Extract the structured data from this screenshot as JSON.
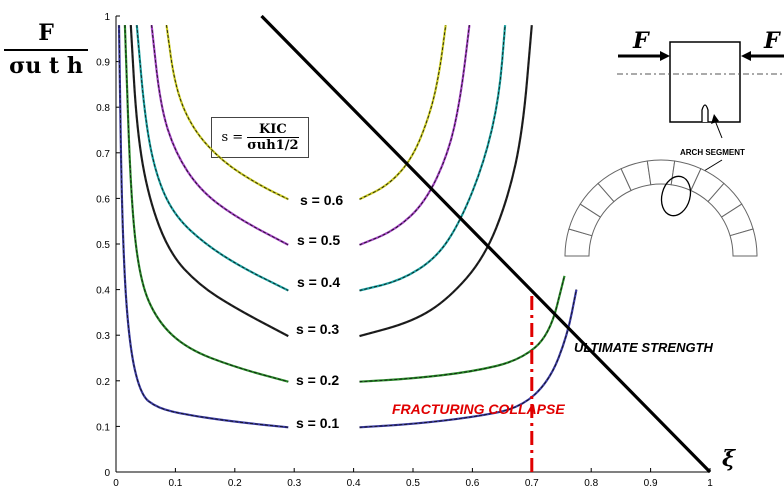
{
  "y_label": {
    "numerator": "F",
    "denominator": "σu t h"
  },
  "formula": {
    "lhs": "s =",
    "numerator": "KIC",
    "denominator": "σuh1/2"
  },
  "x_symbol": "ξ",
  "chart_data": {
    "type": "line",
    "xlim": [
      0,
      1
    ],
    "ylim": [
      0,
      1
    ],
    "xticks": [
      "0",
      "0.1",
      "0.2",
      "0.3",
      "0.4",
      "0.5",
      "0.6",
      "0.7",
      "0.8",
      "0.9",
      "1"
    ],
    "yticks": [
      "0",
      "0.1",
      "0.2",
      "0.3",
      "0.4",
      "0.5",
      "0.6",
      "0.7",
      "0.8",
      "0.9",
      "1"
    ],
    "grid": false,
    "series": [
      {
        "name": "s = 0.1",
        "color": "#3a3aa0",
        "left": [
          [
            0.005,
            0.98
          ],
          [
            0.01,
            0.55
          ],
          [
            0.02,
            0.3
          ],
          [
            0.04,
            0.17
          ],
          [
            0.07,
            0.14
          ],
          [
            0.12,
            0.125
          ],
          [
            0.2,
            0.11
          ],
          [
            0.29,
            0.098
          ]
        ],
        "right": [
          [
            0.41,
            0.098
          ],
          [
            0.5,
            0.105
          ],
          [
            0.6,
            0.12
          ],
          [
            0.68,
            0.14
          ],
          [
            0.73,
            0.2
          ],
          [
            0.76,
            0.3
          ],
          [
            0.775,
            0.4
          ]
        ]
      },
      {
        "name": "s = 0.2",
        "color": "#2a8a2a",
        "left": [
          [
            0.015,
            0.98
          ],
          [
            0.025,
            0.6
          ],
          [
            0.04,
            0.42
          ],
          [
            0.07,
            0.33
          ],
          [
            0.12,
            0.27
          ],
          [
            0.2,
            0.23
          ],
          [
            0.29,
            0.198
          ]
        ],
        "right": [
          [
            0.41,
            0.198
          ],
          [
            0.5,
            0.205
          ],
          [
            0.6,
            0.22
          ],
          [
            0.68,
            0.245
          ],
          [
            0.73,
            0.3
          ],
          [
            0.755,
            0.43
          ]
        ]
      },
      {
        "name": "s = 0.3",
        "color": "#222222",
        "left": [
          [
            0.025,
            0.98
          ],
          [
            0.035,
            0.75
          ],
          [
            0.055,
            0.6
          ],
          [
            0.09,
            0.48
          ],
          [
            0.14,
            0.41
          ],
          [
            0.2,
            0.36
          ],
          [
            0.29,
            0.298
          ]
        ],
        "right": [
          [
            0.41,
            0.298
          ],
          [
            0.5,
            0.33
          ],
          [
            0.56,
            0.38
          ],
          [
            0.62,
            0.47
          ],
          [
            0.66,
            0.6
          ],
          [
            0.685,
            0.75
          ],
          [
            0.7,
            0.98
          ]
        ]
      },
      {
        "name": "s = 0.4",
        "color": "#1aa0a0",
        "left": [
          [
            0.035,
            0.98
          ],
          [
            0.05,
            0.76
          ],
          [
            0.07,
            0.64
          ],
          [
            0.1,
            0.56
          ],
          [
            0.15,
            0.5
          ],
          [
            0.21,
            0.45
          ],
          [
            0.29,
            0.398
          ]
        ],
        "right": [
          [
            0.41,
            0.398
          ],
          [
            0.48,
            0.42
          ],
          [
            0.54,
            0.47
          ],
          [
            0.58,
            0.55
          ],
          [
            0.62,
            0.68
          ],
          [
            0.645,
            0.82
          ],
          [
            0.655,
            0.98
          ]
        ]
      },
      {
        "name": "s = 0.5",
        "color": "#a040c0",
        "left": [
          [
            0.06,
            0.98
          ],
          [
            0.075,
            0.8
          ],
          [
            0.1,
            0.7
          ],
          [
            0.14,
            0.62
          ],
          [
            0.2,
            0.56
          ],
          [
            0.29,
            0.498
          ]
        ],
        "right": [
          [
            0.41,
            0.498
          ],
          [
            0.47,
            0.53
          ],
          [
            0.52,
            0.59
          ],
          [
            0.56,
            0.7
          ],
          [
            0.58,
            0.82
          ],
          [
            0.595,
            0.98
          ]
        ]
      },
      {
        "name": "s = 0.6",
        "color": "#c8c820",
        "left": [
          [
            0.085,
            0.98
          ],
          [
            0.1,
            0.84
          ],
          [
            0.13,
            0.75
          ],
          [
            0.18,
            0.68
          ],
          [
            0.24,
            0.63
          ],
          [
            0.29,
            0.598
          ]
        ],
        "right": [
          [
            0.41,
            0.598
          ],
          [
            0.46,
            0.63
          ],
          [
            0.5,
            0.69
          ],
          [
            0.53,
            0.79
          ],
          [
            0.545,
            0.88
          ],
          [
            0.555,
            0.98
          ]
        ]
      }
    ],
    "ultimate_strength": [
      [
        0.245,
        1.0
      ],
      [
        1.0,
        0.0
      ]
    ],
    "fracturing_collapse_x": 0.7,
    "annotations": {
      "ultimate": "ULTIMATE STRENGTH",
      "fracturing": "FRACTURING COLLAPSE",
      "arch": "ARCH SEGMENT",
      "force": "F"
    }
  }
}
